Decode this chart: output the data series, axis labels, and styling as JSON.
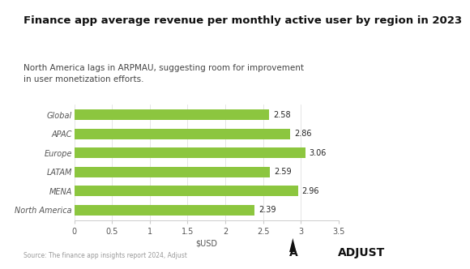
{
  "title": "Finance app average revenue per monthly active user by region in 2023",
  "subtitle": "North America lags in ARPMAU, suggesting room for improvement\nin user monetization efforts.",
  "categories": [
    "Global",
    "APAC",
    "Europe",
    "LATAM",
    "MENA",
    "North America"
  ],
  "values": [
    2.58,
    2.86,
    3.06,
    2.59,
    2.96,
    2.39
  ],
  "bar_color": "#8cc63f",
  "xlabel": "$USD",
  "xlim": [
    0,
    3.5
  ],
  "xticks": [
    0,
    0.5,
    1,
    1.5,
    2,
    2.5,
    3,
    3.5
  ],
  "xtick_labels": [
    "0",
    "0.5",
    "1",
    "1.5",
    "2",
    "2.5",
    "3",
    "3.5"
  ],
  "source_text": "Source: The finance app insights report 2024, Adjust",
  "background_color": "#ffffff",
  "title_fontsize": 9.5,
  "subtitle_fontsize": 7.5,
  "label_fontsize": 7,
  "value_fontsize": 7,
  "source_fontsize": 5.5,
  "logo_fontsize": 10
}
